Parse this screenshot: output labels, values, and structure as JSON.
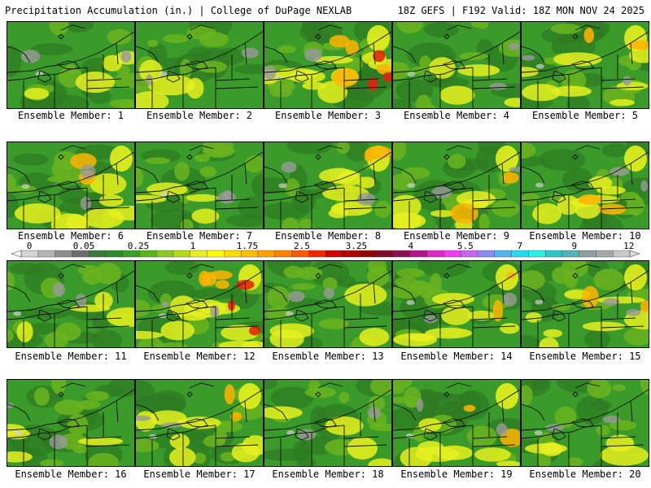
{
  "header": {
    "title_left": "Precipitation Accumulation (in.) | College of DuPage NEXLAB",
    "title_right": "18Z GEFS | F192 Valid: 18Z MON NOV 24 2025"
  },
  "legend": {
    "labels": [
      "0",
      "0.05",
      "0.25",
      "1",
      "1.75",
      "2.5",
      "3.25",
      "4",
      "5.5",
      "7",
      "9",
      "12"
    ],
    "colors": [
      "#d4d4d4",
      "#b4b4b4",
      "#8c8c8c",
      "#6e6e6e",
      "#3c7a3c",
      "#2a8a2a",
      "#38a028",
      "#5ab41e",
      "#8cc81e",
      "#b4dc14",
      "#e6f01e",
      "#ffff00",
      "#ffdc00",
      "#ffbe00",
      "#ffa000",
      "#ff8200",
      "#ff5a00",
      "#f02800",
      "#d20000",
      "#b40000",
      "#960000",
      "#7d0a28",
      "#8c1050",
      "#b4148c",
      "#dc28c8",
      "#f03cf0",
      "#c864f0",
      "#8c8cf0",
      "#50b4f0",
      "#28dcf0",
      "#28f0e6",
      "#28c8c8",
      "#50b4b4",
      "#8ca0a0",
      "#a8a8a8",
      "#c8c8c8"
    ]
  },
  "map_palette": {
    "base": "#3a9a2a",
    "dark": "#2e7a22",
    "light": "#6ab41e",
    "yellow": "#e6f01e",
    "orange": "#ffb400",
    "red": "#e61e0a",
    "gray": "#9a9a9a",
    "whitegray": "#d0d0d0"
  },
  "members": [
    {
      "label": "Ensemble Member: 1",
      "theme": "dry"
    },
    {
      "label": "Ensemble Member: 2",
      "theme": "dry"
    },
    {
      "label": "Ensemble Member: 3",
      "theme": "wet"
    },
    {
      "label": "Ensemble Member: 4",
      "theme": "dry"
    },
    {
      "label": "Ensemble Member: 5",
      "theme": "mid"
    },
    {
      "label": "Ensemble Member: 6",
      "theme": "mid"
    },
    {
      "label": "Ensemble Member: 7",
      "theme": "dry"
    },
    {
      "label": "Ensemble Member: 8",
      "theme": "mid"
    },
    {
      "label": "Ensemble Member: 9",
      "theme": "mid"
    },
    {
      "label": "Ensemble Member: 10",
      "theme": "mid"
    },
    {
      "label": "Ensemble Member: 11",
      "theme": "dry"
    },
    {
      "label": "Ensemble Member: 12",
      "theme": "wet"
    },
    {
      "label": "Ensemble Member: 13",
      "theme": "dry"
    },
    {
      "label": "Ensemble Member: 14",
      "theme": "mid"
    },
    {
      "label": "Ensemble Member: 15",
      "theme": "mid"
    },
    {
      "label": "Ensemble Member: 16",
      "theme": "dry"
    },
    {
      "label": "Ensemble Member: 17",
      "theme": "mid"
    },
    {
      "label": "Ensemble Member: 18",
      "theme": "dry"
    },
    {
      "label": "Ensemble Member: 19",
      "theme": "mid"
    },
    {
      "label": "Ensemble Member: 20",
      "theme": "dry"
    }
  ]
}
